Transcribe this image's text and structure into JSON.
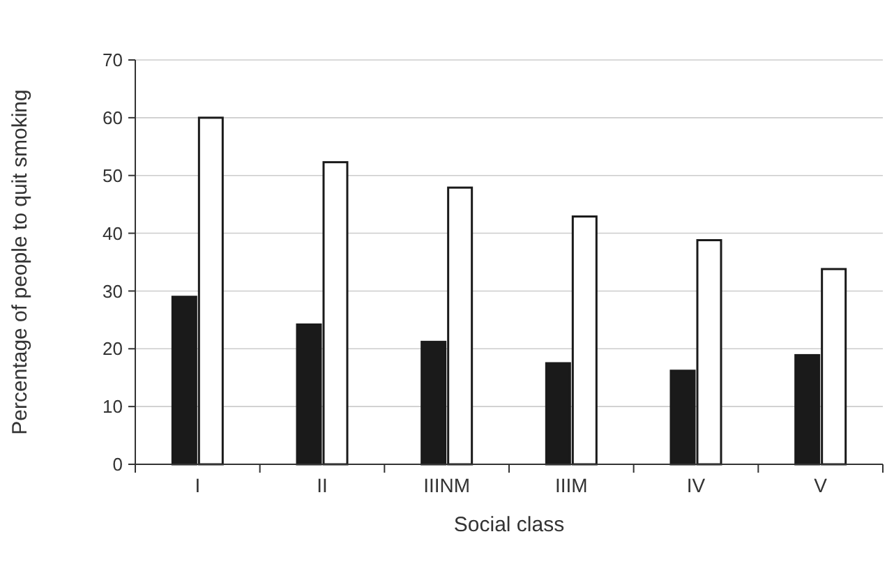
{
  "chart_data": {
    "type": "bar",
    "xlabel": "Social class",
    "ylabel": "Percentage of people to quit smoking",
    "categories": [
      "I",
      "II",
      "IIINM",
      "IIIM",
      "IV",
      "V"
    ],
    "series": [
      {
        "color": "#1a1a1a",
        "values": [
          29,
          24.2,
          21.2,
          17.5,
          16.2,
          18.9
        ]
      },
      {
        "color": "#ffffff",
        "values": [
          60,
          52.3,
          47.9,
          42.9,
          38.8,
          33.8
        ]
      }
    ],
    "ylim": [
      0,
      70
    ],
    "yticks": [
      0,
      10,
      20,
      30,
      40,
      50,
      60,
      70
    ],
    "grid": "y"
  }
}
